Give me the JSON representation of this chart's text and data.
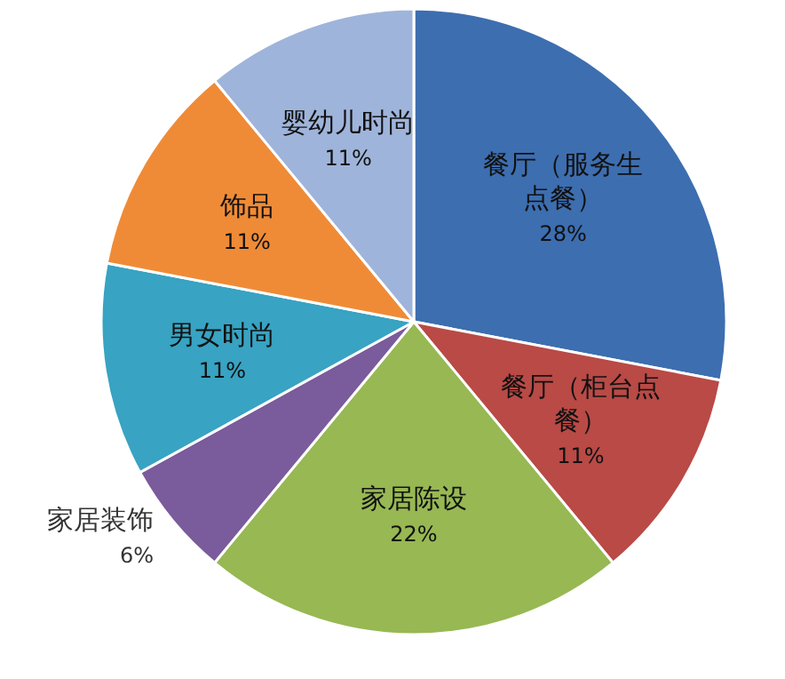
{
  "chart_data": {
    "type": "pie",
    "categories": [
      "餐厅（服务生点餐）",
      "餐厅（柜台点餐）",
      "家居陈设",
      "家居装饰",
      "男女时尚",
      "饰品",
      "婴幼儿时尚"
    ],
    "values": [
      28,
      11,
      22,
      6,
      11,
      11,
      11
    ],
    "value_labels": [
      "28%",
      "11%",
      "22%",
      "6%",
      "11%",
      "11%",
      "11%"
    ],
    "colors": [
      "#3d6eb0",
      "#b94a46",
      "#97b853",
      "#7a5b9b",
      "#38a3c2",
      "#ef8b37",
      "#9fb4da"
    ],
    "legend": false
  }
}
